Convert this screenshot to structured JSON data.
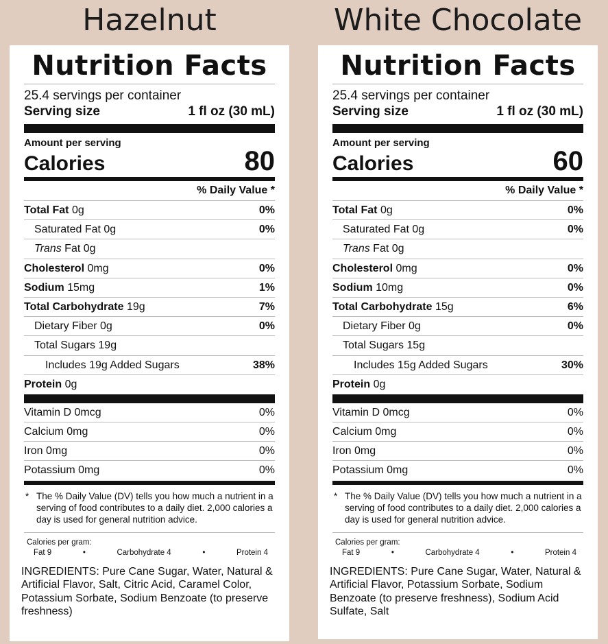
{
  "labels": [
    {
      "flavor": "Hazelnut",
      "title": "Nutrition Facts",
      "servings": "25.4 servings per container",
      "serving_size_label": "Serving size",
      "serving_size_value": "1 fl oz (30 mL)",
      "amount_per_serving": "Amount per serving",
      "calories_label": "Calories",
      "calories": "80",
      "daily_value_header": "% Daily Value *",
      "rows": [
        {
          "name": "Total Fat",
          "amount": "0g",
          "dv": "0%"
        },
        {
          "name": "Saturated Fat",
          "amount": "0g",
          "dv": "0%"
        },
        {
          "name": "Trans",
          "suffix": "Fat",
          "amount": "0g",
          "dv": ""
        },
        {
          "name": "Cholesterol",
          "amount": "0mg",
          "dv": "0%"
        },
        {
          "name": "Sodium",
          "amount": "15mg",
          "dv": "1%"
        },
        {
          "name": "Total Carbohydrate",
          "amount": "19g",
          "dv": "7%"
        },
        {
          "name": "Dietary Fiber",
          "amount": "0g",
          "dv": "0%"
        },
        {
          "name": "Total Sugars",
          "amount": "19g",
          "dv": ""
        },
        {
          "name": "Includes 19g Added Sugars",
          "amount": "",
          "dv": "38%"
        },
        {
          "name": "Protein",
          "amount": "0g",
          "dv": ""
        }
      ],
      "vitamins": [
        {
          "name": "Vitamin D 0mcg",
          "dv": "0%"
        },
        {
          "name": "Calcium 0mg",
          "dv": "0%"
        },
        {
          "name": "Iron 0mg",
          "dv": "0%"
        },
        {
          "name": "Potassium 0mg",
          "dv": "0%"
        }
      ],
      "footnote_star": "*",
      "footnote": "The % Daily Value (DV) tells you how much a nutrient in a serving of food contributes to a daily diet. 2,000 calories a day is used for general nutrition advice.",
      "calories_per_gram": "Calories per gram:",
      "cpg_fat": "Fat 9",
      "cpg_carb": "Carbohydrate 4",
      "cpg_protein": "Protein 4",
      "cpg_bullet": "•",
      "ingredients": "INGREDIENTS: Pure Cane Sugar, Water, Natural & Artificial Flavor, Salt, Citric Acid, Caramel Color, Potassium Sorbate, Sodium Benzoate (to preserve freshness)"
    },
    {
      "flavor": "White Chocolate",
      "title": "Nutrition Facts",
      "servings": "25.4 servings per container",
      "serving_size_label": "Serving size",
      "serving_size_value": "1 fl oz (30 mL)",
      "amount_per_serving": "Amount per serving",
      "calories_label": "Calories",
      "calories": "60",
      "daily_value_header": "% Daily Value *",
      "rows": [
        {
          "name": "Total Fat",
          "amount": "0g",
          "dv": "0%"
        },
        {
          "name": "Saturated Fat",
          "amount": "0g",
          "dv": "0%"
        },
        {
          "name": "Trans",
          "suffix": "Fat",
          "amount": "0g",
          "dv": ""
        },
        {
          "name": "Cholesterol",
          "amount": "0mg",
          "dv": "0%"
        },
        {
          "name": "Sodium",
          "amount": "10mg",
          "dv": "0%"
        },
        {
          "name": "Total Carbohydrate",
          "amount": "15g",
          "dv": "6%"
        },
        {
          "name": "Dietary Fiber",
          "amount": "0g",
          "dv": "0%"
        },
        {
          "name": "Total Sugars",
          "amount": "15g",
          "dv": ""
        },
        {
          "name": "Includes 15g Added Sugars",
          "amount": "",
          "dv": "30%"
        },
        {
          "name": "Protein",
          "amount": "0g",
          "dv": ""
        }
      ],
      "vitamins": [
        {
          "name": "Vitamin D 0mcg",
          "dv": "0%"
        },
        {
          "name": "Calcium 0mg",
          "dv": "0%"
        },
        {
          "name": "Iron 0mg",
          "dv": "0%"
        },
        {
          "name": "Potassium 0mg",
          "dv": "0%"
        }
      ],
      "footnote_star": "*",
      "footnote": "The % Daily Value (DV) tells you how much a nutrient in a serving of food contributes to a daily diet. 2,000 calories a day is used for general nutrition advice.",
      "calories_per_gram": "Calories per gram:",
      "cpg_fat": "Fat 9",
      "cpg_carb": "Carbohydrate 4",
      "cpg_protein": "Protein 4",
      "cpg_bullet": "•",
      "ingredients": "INGREDIENTS: Pure Cane Sugar, Water, Natural & Artificial Flavor, Potassium Sorbate, Sodium Benzoate (to preserve freshness), Sodium Acid Sulfate, Salt"
    }
  ]
}
